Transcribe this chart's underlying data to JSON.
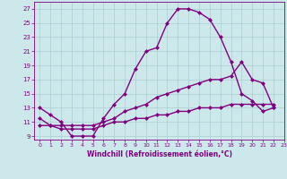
{
  "line1_x": [
    0,
    1,
    2,
    3,
    4,
    5,
    6,
    7,
    8,
    9,
    10,
    11,
    12,
    13,
    14,
    15,
    16,
    17,
    18,
    19,
    20,
    21,
    22
  ],
  "line1_y": [
    13,
    12,
    11,
    9.0,
    9.0,
    9.0,
    11.5,
    13.5,
    15.0,
    18.5,
    21.0,
    21.5,
    25.0,
    27.0,
    27.0,
    26.5,
    25.5,
    23.0,
    19.5,
    15.0,
    14.0,
    12.5,
    13.0
  ],
  "line2_x": [
    0,
    1,
    2,
    3,
    4,
    5,
    6,
    7,
    8,
    9,
    10,
    11,
    12,
    13,
    14,
    15,
    16,
    17,
    18,
    19,
    20,
    21,
    22
  ],
  "line2_y": [
    11.5,
    10.5,
    10.5,
    10.5,
    10.5,
    10.5,
    11.0,
    11.5,
    12.5,
    13.0,
    13.5,
    14.5,
    15.0,
    15.5,
    16.0,
    16.5,
    17.0,
    17.0,
    17.5,
    19.5,
    17.0,
    16.5,
    13.0
  ],
  "line3_x": [
    0,
    1,
    2,
    3,
    4,
    5,
    6,
    7,
    8,
    9,
    10,
    11,
    12,
    13,
    14,
    15,
    16,
    17,
    18,
    19,
    20,
    21,
    22
  ],
  "line3_y": [
    10.5,
    10.5,
    10.0,
    10.0,
    10.0,
    10.0,
    10.5,
    11.0,
    11.0,
    11.5,
    11.5,
    12.0,
    12.0,
    12.5,
    12.5,
    13.0,
    13.0,
    13.0,
    13.5,
    13.5,
    13.5,
    13.5,
    13.5
  ],
  "line_color": "#800080",
  "bg_color": "#cce8ea",
  "grid_color": "#aacfd2",
  "xlabel": "Windchill (Refroidissement éolien,°C)",
  "xlim_min": -0.5,
  "xlim_max": 23,
  "ylim_min": 8.5,
  "ylim_max": 28.0,
  "yticks": [
    9,
    11,
    13,
    15,
    17,
    19,
    21,
    23,
    25,
    27
  ],
  "xticks": [
    0,
    1,
    2,
    3,
    4,
    5,
    6,
    7,
    8,
    9,
    10,
    11,
    12,
    13,
    14,
    15,
    16,
    17,
    18,
    19,
    20,
    21,
    22,
    23
  ],
  "marker": "D",
  "marker_size": 2.5,
  "line_width": 1.0
}
